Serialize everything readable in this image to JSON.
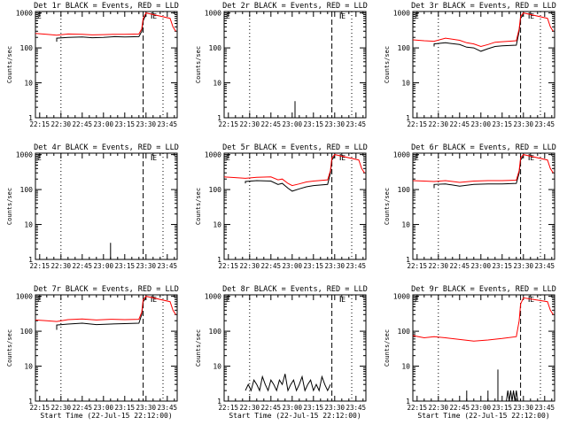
{
  "page": {
    "background": "#ffffff",
    "axis_color": "#000000",
    "events_color": "#000000",
    "lld_color": "#ff0000"
  },
  "chart_data": [
    {
      "type": "line",
      "title": "Det 1r BLACK = Events, RED = LLD",
      "ylabel": "Counts/sec",
      "xlabel": "",
      "x_ticks": [
        "22:15",
        "22:30",
        "22:45",
        "23:00",
        "23:15",
        "23:30",
        "23:45"
      ],
      "y_ticks": [
        "1",
        "10",
        "100",
        "1000"
      ],
      "y_scale": "log",
      "xlim": [
        "22:12",
        "23:52"
      ],
      "ylim": [
        1,
        1100
      ],
      "markers": [
        "22:30",
        "23:28",
        "23:42"
      ],
      "flag_time": "23:34",
      "flag_label": "E",
      "series": [
        {
          "name": "BLACK = Events",
          "color": "#000000",
          "time": [
            "22:27",
            "22:27",
            "22:35",
            "22:45",
            "22:52",
            "23:00",
            "23:08",
            "23:15",
            "23:25",
            "23:27",
            "23:28",
            "23:30"
          ],
          "values": [
            150,
            190,
            200,
            205,
            195,
            200,
            210,
            205,
            210,
            300,
            600,
            900
          ]
        },
        {
          "name": "RED = LLD",
          "color": "#ff0000",
          "time": [
            "22:12",
            "22:20",
            "22:27",
            "22:35",
            "22:45",
            "22:52",
            "23:00",
            "23:08",
            "23:15",
            "23:25",
            "23:27",
            "23:28",
            "23:30",
            "23:47",
            "23:49",
            "23:51"
          ],
          "values": [
            260,
            245,
            230,
            250,
            245,
            235,
            240,
            245,
            245,
            250,
            350,
            700,
            1000,
            700,
            400,
            300
          ]
        }
      ]
    },
    {
      "type": "line",
      "title": "Det 2r BLACK = Events, RED = LLD",
      "ylabel": "Counts/sec",
      "xlabel": "",
      "x_ticks": [
        "22:15",
        "22:30",
        "22:45",
        "23:00",
        "23:15",
        "23:30",
        "23:45"
      ],
      "y_ticks": [
        "1",
        "10",
        "100",
        "1000"
      ],
      "y_scale": "log",
      "xlim": [
        "22:12",
        "23:52"
      ],
      "ylim": [
        1,
        1100
      ],
      "markers": [
        "22:30",
        "23:28",
        "23:42"
      ],
      "flag_time": "23:34",
      "flag_label": "E",
      "series": [
        {
          "name": "BLACK = Events",
          "color": "#000000",
          "time": [
            "23:02",
            "23:02",
            "23:02"
          ],
          "values": [
            1,
            3,
            1
          ]
        }
      ]
    },
    {
      "type": "line",
      "title": "Det 3r BLACK = Events, RED = LLD",
      "ylabel": "Counts/sec",
      "xlabel": "",
      "x_ticks": [
        "22:15",
        "22:30",
        "22:45",
        "23:00",
        "23:15",
        "23:30",
        "23:45"
      ],
      "y_ticks": [
        "1",
        "10",
        "100",
        "1000"
      ],
      "y_scale": "log",
      "xlim": [
        "22:12",
        "23:52"
      ],
      "ylim": [
        1,
        1100
      ],
      "markers": [
        "22:30",
        "23:28",
        "23:42"
      ],
      "flag_time": "23:34",
      "flag_label": "E",
      "series": [
        {
          "name": "BLACK = Events",
          "color": "#000000",
          "time": [
            "22:27",
            "22:27",
            "22:35",
            "22:45",
            "22:50",
            "22:55",
            "23:00",
            "23:05",
            "23:10",
            "23:15",
            "23:25",
            "23:27",
            "23:28",
            "23:30"
          ],
          "values": [
            110,
            130,
            140,
            125,
            105,
            100,
            80,
            95,
            110,
            115,
            120,
            300,
            700,
            900
          ]
        },
        {
          "name": "RED = LLD",
          "color": "#ff0000",
          "time": [
            "22:12",
            "22:20",
            "22:27",
            "22:35",
            "22:45",
            "22:50",
            "22:55",
            "23:00",
            "23:05",
            "23:10",
            "23:15",
            "23:25",
            "23:27",
            "23:28",
            "23:30",
            "23:47",
            "23:49",
            "23:51"
          ],
          "values": [
            170,
            160,
            155,
            190,
            165,
            140,
            130,
            110,
            125,
            145,
            150,
            160,
            350,
            800,
            1000,
            700,
            400,
            300
          ]
        }
      ]
    },
    {
      "type": "line",
      "title": "Det 4r BLACK = Events, RED = LLD",
      "ylabel": "Counts/sec",
      "xlabel": "",
      "x_ticks": [
        "22:15",
        "22:30",
        "22:45",
        "23:00",
        "23:15",
        "23:30",
        "23:45"
      ],
      "y_ticks": [
        "1",
        "10",
        "100",
        "1000"
      ],
      "y_scale": "log",
      "xlim": [
        "22:12",
        "23:52"
      ],
      "ylim": [
        1,
        1100
      ],
      "markers": [
        "22:30",
        "23:28",
        "23:42"
      ],
      "flag_time": "23:34",
      "flag_label": "E",
      "series": [
        {
          "name": "BLACK = Events",
          "color": "#000000",
          "time": [
            "23:05",
            "23:05",
            "23:05"
          ],
          "values": [
            1,
            3,
            1
          ]
        }
      ]
    },
    {
      "type": "line",
      "title": "Det 5r BLACK = Events, RED = LLD",
      "ylabel": "Counts/sec",
      "xlabel": "",
      "x_ticks": [
        "22:15",
        "22:30",
        "22:45",
        "23:00",
        "23:15",
        "23:30",
        "23:45"
      ],
      "y_ticks": [
        "1",
        "10",
        "100",
        "1000"
      ],
      "y_scale": "log",
      "xlim": [
        "22:12",
        "23:52"
      ],
      "ylim": [
        1,
        1100
      ],
      "markers": [
        "22:30",
        "23:28",
        "23:42"
      ],
      "flag_time": "23:34",
      "flag_label": "E",
      "series": [
        {
          "name": "BLACK = Events",
          "color": "#000000",
          "time": [
            "22:27",
            "22:27",
            "22:35",
            "22:45",
            "22:50",
            "22:53",
            "22:57",
            "23:00",
            "23:05",
            "23:10",
            "23:15",
            "23:25",
            "23:27",
            "23:28",
            "23:30"
          ],
          "values": [
            150,
            170,
            180,
            175,
            140,
            150,
            110,
            90,
            105,
            120,
            130,
            140,
            300,
            700,
            900
          ]
        },
        {
          "name": "RED = LLD",
          "color": "#ff0000",
          "time": [
            "22:12",
            "22:20",
            "22:27",
            "22:35",
            "22:45",
            "22:50",
            "22:53",
            "22:57",
            "23:00",
            "23:05",
            "23:10",
            "23:15",
            "23:25",
            "23:27",
            "23:28",
            "23:30",
            "23:47",
            "23:49",
            "23:51"
          ],
          "values": [
            230,
            220,
            210,
            225,
            230,
            190,
            200,
            150,
            130,
            145,
            165,
            175,
            190,
            350,
            800,
            1000,
            700,
            400,
            300
          ]
        }
      ]
    },
    {
      "type": "line",
      "title": "Det 6r BLACK = Events, RED = LLD",
      "ylabel": "Counts/sec",
      "xlabel": "",
      "x_ticks": [
        "22:15",
        "22:30",
        "22:45",
        "23:00",
        "23:15",
        "23:30",
        "23:45"
      ],
      "y_ticks": [
        "1",
        "10",
        "100",
        "1000"
      ],
      "y_scale": "log",
      "xlim": [
        "22:12",
        "23:52"
      ],
      "ylim": [
        1,
        1100
      ],
      "markers": [
        "22:30",
        "23:28",
        "23:42"
      ],
      "flag_time": "23:34",
      "flag_label": "E",
      "series": [
        {
          "name": "BLACK = Events",
          "color": "#000000",
          "time": [
            "22:27",
            "22:27",
            "22:35",
            "22:45",
            "22:55",
            "23:05",
            "23:15",
            "23:25",
            "23:27",
            "23:28",
            "23:30"
          ],
          "values": [
            110,
            140,
            145,
            125,
            140,
            145,
            145,
            150,
            300,
            700,
            900
          ]
        },
        {
          "name": "RED = LLD",
          "color": "#ff0000",
          "time": [
            "22:12",
            "22:20",
            "22:27",
            "22:35",
            "22:45",
            "22:55",
            "23:05",
            "23:15",
            "23:25",
            "23:27",
            "23:28",
            "23:30",
            "23:47",
            "23:49",
            "23:51"
          ],
          "values": [
            180,
            175,
            170,
            180,
            160,
            175,
            180,
            180,
            185,
            350,
            800,
            1000,
            700,
            400,
            300
          ]
        }
      ]
    },
    {
      "type": "line",
      "title": "Det 7r BLACK = Events, RED = LLD",
      "ylabel": "Counts/sec",
      "xlabel": "Start Time (22-Jul-15 22:12:00)",
      "x_ticks": [
        "22:15",
        "22:30",
        "22:45",
        "23:00",
        "23:15",
        "23:30",
        "23:45"
      ],
      "y_ticks": [
        "1",
        "10",
        "100",
        "1000"
      ],
      "y_scale": "log",
      "xlim": [
        "22:12",
        "23:52"
      ],
      "ylim": [
        1,
        1100
      ],
      "markers": [
        "22:30",
        "23:28",
        "23:42"
      ],
      "flag_time": "23:34",
      "flag_label": "E",
      "series": [
        {
          "name": "BLACK = Events",
          "color": "#000000",
          "time": [
            "22:27",
            "22:27",
            "22:35",
            "22:45",
            "22:55",
            "23:05",
            "23:15",
            "23:25",
            "23:27",
            "23:28",
            "23:30"
          ],
          "values": [
            110,
            150,
            160,
            170,
            155,
            160,
            165,
            170,
            300,
            700,
            900
          ]
        },
        {
          "name": "RED = LLD",
          "color": "#ff0000",
          "time": [
            "22:12",
            "22:20",
            "22:27",
            "22:35",
            "22:45",
            "22:55",
            "23:05",
            "23:15",
            "23:25",
            "23:27",
            "23:28",
            "23:30",
            "23:47",
            "23:49",
            "23:51"
          ],
          "values": [
            210,
            200,
            190,
            215,
            225,
            210,
            220,
            215,
            220,
            350,
            800,
            1000,
            700,
            400,
            300
          ]
        }
      ]
    },
    {
      "type": "line",
      "title": "Det 8r BLACK = Events, RED = LLD",
      "ylabel": "Counts/sec",
      "xlabel": "Start Time (22-Jul-15 22:12:00)",
      "x_ticks": [
        "22:15",
        "22:30",
        "22:45",
        "23:00",
        "23:15",
        "23:30",
        "23:45"
      ],
      "y_ticks": [
        "1",
        "10",
        "100",
        "1000"
      ],
      "y_scale": "log",
      "xlim": [
        "22:12",
        "23:52"
      ],
      "ylim": [
        1,
        1100
      ],
      "markers": [
        "22:30",
        "23:28",
        "23:42"
      ],
      "flag_time": "23:34",
      "flag_label": "E",
      "series": [
        {
          "name": "BLACK = Events",
          "color": "#000000",
          "time": [
            "22:27",
            "22:29",
            "22:31",
            "22:33",
            "22:35",
            "22:37",
            "22:39",
            "22:41",
            "22:43",
            "22:45",
            "22:47",
            "22:49",
            "22:51",
            "22:53",
            "22:55",
            "22:57",
            "22:59",
            "23:01",
            "23:03",
            "23:05",
            "23:07",
            "23:09",
            "23:11",
            "23:13",
            "23:15",
            "23:17",
            "23:19",
            "23:21",
            "23:23",
            "23:25",
            "23:27"
          ],
          "values": [
            2,
            3,
            2,
            4,
            3,
            2,
            5,
            3,
            2,
            4,
            3,
            2,
            4,
            3,
            6,
            2,
            3,
            4,
            2,
            3,
            5,
            2,
            3,
            4,
            2,
            3,
            2,
            5,
            3,
            2,
            3
          ]
        }
      ]
    },
    {
      "type": "line",
      "title": "Det 9r BLACK = Events, RED = LLD",
      "ylabel": "Counts/sec",
      "xlabel": "Start Time (22-Jul-15 22:12:00)",
      "x_ticks": [
        "22:15",
        "22:30",
        "22:45",
        "23:00",
        "23:15",
        "23:30",
        "23:45"
      ],
      "y_ticks": [
        "1",
        "10",
        "100",
        "1000"
      ],
      "y_scale": "log",
      "xlim": [
        "22:12",
        "23:52"
      ],
      "ylim": [
        1,
        1100
      ],
      "markers": [
        "22:30",
        "23:28",
        "23:42"
      ],
      "flag_time": "23:34",
      "flag_label": "E",
      "series": [
        {
          "name": "BLACK = Events",
          "color": "#000000",
          "time": [
            "22:50",
            "22:50",
            "22:50",
            "23:05",
            "23:05",
            "23:05",
            "23:12",
            "23:12",
            "23:12",
            "23:18",
            "23:19",
            "23:20",
            "23:21",
            "23:22",
            "23:23",
            "23:24",
            "23:25",
            "23:26"
          ],
          "values": [
            1,
            2,
            1,
            1,
            2,
            1,
            1,
            8,
            1,
            1,
            2,
            1,
            2,
            1,
            2,
            1,
            2,
            1
          ]
        },
        {
          "name": "RED = LLD",
          "color": "#ff0000",
          "time": [
            "22:12",
            "22:20",
            "22:27",
            "22:35",
            "22:45",
            "22:55",
            "23:05",
            "23:15",
            "23:25",
            "23:27",
            "23:28",
            "23:30",
            "23:47",
            "23:49",
            "23:51"
          ],
          "values": [
            75,
            65,
            70,
            65,
            58,
            52,
            56,
            62,
            70,
            200,
            600,
            900,
            700,
            400,
            300
          ]
        }
      ]
    }
  ]
}
